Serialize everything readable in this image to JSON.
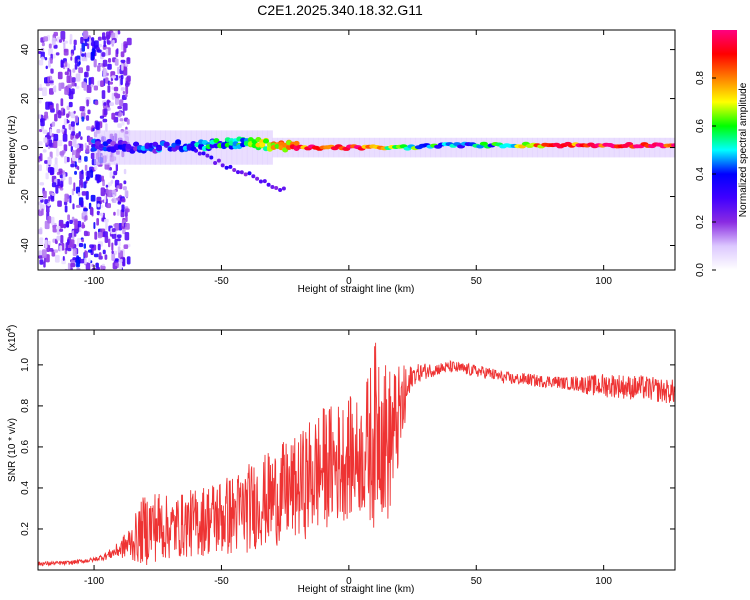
{
  "title": "C2E1.2025.340.18.32.G11",
  "chart_data": [
    {
      "type": "heatmap",
      "title": "C2E1.2025.340.18.32.G11",
      "xlabel": "Height of straight line (km)",
      "ylabel": "Frequency (Hz)",
      "xlim": [
        -122,
        128
      ],
      "ylim": [
        -50,
        48
      ],
      "xticks": [
        -100,
        -50,
        0,
        50,
        100
      ],
      "yticks": [
        -40,
        -20,
        0,
        20,
        40
      ],
      "colorbar": {
        "label": "Normalized spectral amplitude",
        "range": [
          0.0,
          1.0
        ],
        "ticks": [
          "0.0",
          "0.2",
          "0.4",
          "0.6",
          "0.8"
        ],
        "stops": [
          "#ffffff",
          "#dcc8ff",
          "#8a2be2",
          "#4000ff",
          "#0000ff",
          "#00ffff",
          "#00ff00",
          "#ffff00",
          "#ff8000",
          "#ff0000",
          "#ff0080"
        ]
      },
      "ridge": {
        "description": "dominant frequency ridge near 0 Hz",
        "x": [
          -100,
          -80,
          -60,
          -40,
          -20,
          0,
          20,
          40,
          60,
          80,
          100,
          128
        ],
        "y": [
          1,
          0,
          1,
          2,
          0,
          0,
          0,
          1,
          1,
          1,
          1,
          1
        ],
        "amplitude": [
          0.3,
          0.35,
          0.4,
          0.55,
          0.85,
          0.95,
          0.6,
          0.45,
          0.5,
          0.85,
          0.9,
          0.95
        ]
      }
    },
    {
      "type": "line",
      "xlabel": "Height of straight line (km)",
      "ylabel": "SNR (10 * v/v)",
      "yscale_label": "(x10",
      "yscale_exp": "4",
      "xlim": [
        -122,
        128
      ],
      "ylim": [
        0.0,
        1.17
      ],
      "xticks": [
        -100,
        -50,
        0,
        50,
        100
      ],
      "yticks": [
        0.2,
        0.4,
        0.6,
        0.8,
        1.0
      ],
      "ytick_labels": [
        "0.2",
        "0.4",
        "0.6",
        "0.8",
        "1.0"
      ],
      "series": [
        {
          "name": "SNR",
          "color": "#ee3333",
          "x": [
            -122,
            -110,
            -100,
            -95,
            -90,
            -85,
            -80,
            -75,
            -70,
            -65,
            -60,
            -55,
            -50,
            -45,
            -40,
            -35,
            -30,
            -25,
            -20,
            -15,
            -10,
            -5,
            0,
            5,
            10,
            12,
            15,
            20,
            25,
            30,
            35,
            40,
            45,
            50,
            55,
            60,
            65,
            70,
            75,
            80,
            85,
            90,
            95,
            100,
            105,
            110,
            115,
            120,
            125,
            128
          ],
          "mean": [
            0.03,
            0.035,
            0.05,
            0.07,
            0.1,
            0.14,
            0.2,
            0.22,
            0.2,
            0.22,
            0.23,
            0.25,
            0.26,
            0.27,
            0.3,
            0.33,
            0.35,
            0.38,
            0.4,
            0.45,
            0.5,
            0.52,
            0.55,
            0.55,
            0.65,
            0.75,
            0.6,
            0.75,
            0.95,
            0.97,
            0.98,
            0.99,
            0.98,
            0.97,
            0.96,
            0.94,
            0.93,
            0.93,
            0.92,
            0.92,
            0.91,
            0.91,
            0.9,
            0.9,
            0.9,
            0.89,
            0.89,
            0.88,
            0.87,
            0.87
          ],
          "spread": [
            0.01,
            0.01,
            0.01,
            0.02,
            0.04,
            0.1,
            0.18,
            0.18,
            0.15,
            0.16,
            0.17,
            0.18,
            0.2,
            0.2,
            0.22,
            0.22,
            0.24,
            0.25,
            0.25,
            0.3,
            0.3,
            0.3,
            0.3,
            0.28,
            0.45,
            0.45,
            0.4,
            0.25,
            0.05,
            0.04,
            0.03,
            0.03,
            0.03,
            0.03,
            0.03,
            0.03,
            0.03,
            0.03,
            0.03,
            0.03,
            0.03,
            0.04,
            0.05,
            0.06,
            0.06,
            0.06,
            0.06,
            0.06,
            0.06,
            0.06
          ]
        }
      ]
    }
  ]
}
